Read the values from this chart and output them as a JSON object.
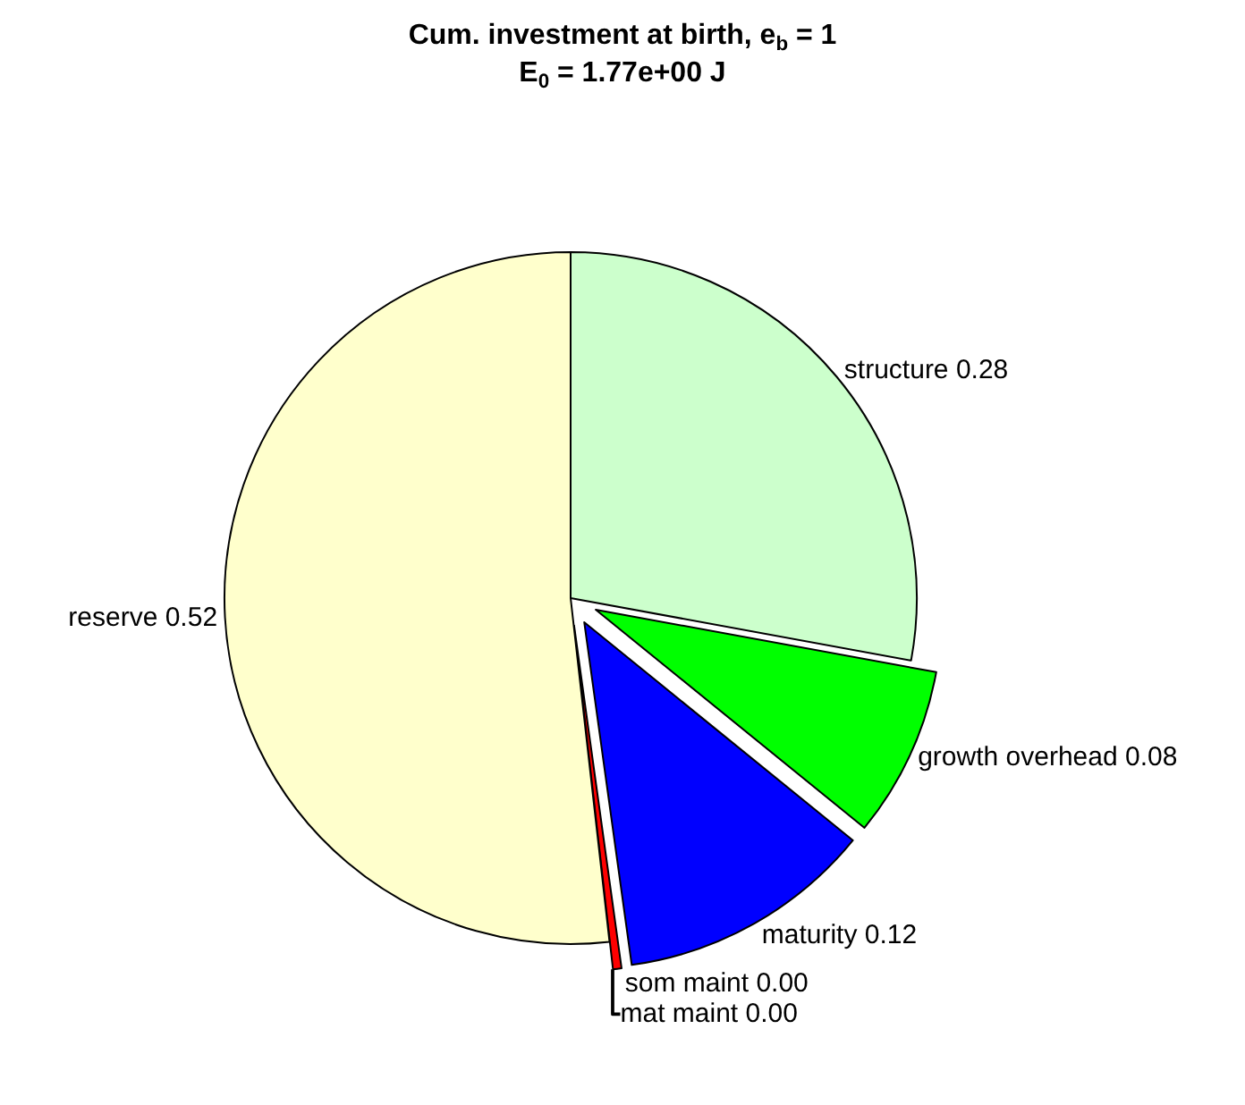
{
  "chart_data": {
    "type": "pie",
    "title": "Cum. investment at birth, e$_{b}$ = 1",
    "subtitle": "E$_{0}$ = 1.77e+00 J",
    "categories": [
      "structure",
      "growth overhead",
      "maturity",
      "som maint",
      "mat maint",
      "reserve"
    ],
    "values": [
      0.28,
      0.08,
      0.12,
      0.004,
      0.0,
      0.52
    ],
    "value_labels": [
      "0.28",
      "0.08",
      "0.12",
      "0.00",
      "0.00",
      "0.52"
    ],
    "colors": [
      "#ccffcc",
      "#00ff00",
      "#0000ff",
      "#ff0000",
      "#ff00ff",
      "#ffffcc"
    ],
    "legend": false
  }
}
